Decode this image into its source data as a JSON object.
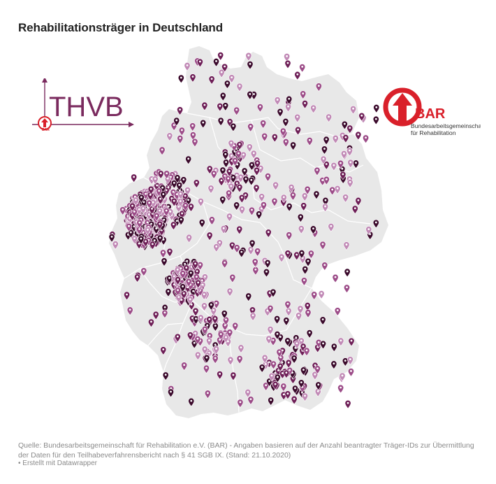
{
  "title": "Rehabilitationsträger in Deutschland",
  "source": "Quelle: Bundesarbeitsgemeinschaft für Rehabilitation e.V. (BAR) - Angaben basieren auf der Anzahl beantragter Träger-IDs zur Übermittlung der Daten für den Teilhabeverfahrensbericht nach § 41 SGB IX. (Stand: 21.10.2020)",
  "credit": "• Erstellt mit Datawrapper",
  "logos": {
    "thvb": {
      "text": "THVB",
      "badge": "BAR",
      "color": "#7a2a5e"
    },
    "bar": {
      "text": "BAR",
      "line1": "Bundesarbeitsgemeinschaft",
      "line2": "für Rehabilitation",
      "color": "#d9202a"
    }
  },
  "map": {
    "land_color": "#e8e8e8",
    "border_color": "#ffffff",
    "marker_colors": [
      "#3b0a2c",
      "#6e1f57",
      "#9c4c88",
      "#c18ab6"
    ]
  }
}
